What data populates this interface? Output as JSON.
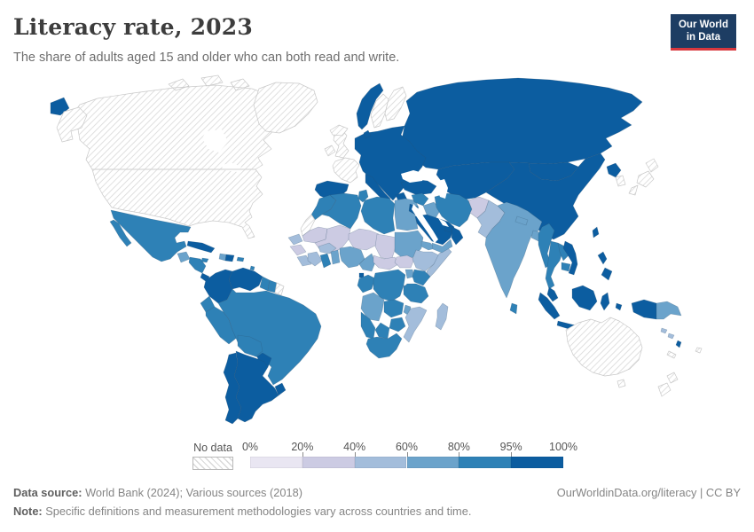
{
  "header": {
    "title": "Literacy rate, 2023",
    "subtitle": "The share of adults aged 15 and older who can both read and write.",
    "logo_line1": "Our World",
    "logo_line2": "in Data"
  },
  "legend": {
    "no_data_label": "No data",
    "tick_labels": [
      "0%",
      "20%",
      "40%",
      "60%",
      "80%",
      "95%",
      "100%"
    ],
    "bins": [
      {
        "range": "0-20%",
        "color": "#e9e6f2"
      },
      {
        "range": "20-40%",
        "color": "#cccbe3"
      },
      {
        "range": "40-60%",
        "color": "#a3bddb"
      },
      {
        "range": "60-80%",
        "color": "#6ba3cb"
      },
      {
        "range": "80-95%",
        "color": "#2e81b6"
      },
      {
        "range": "95-100%",
        "color": "#0c5da0"
      }
    ],
    "no_data_color_lines": "#d9d9d9"
  },
  "footer": {
    "data_source_label": "Data source:",
    "data_source_text": " World Bank (2024); Various sources (2018)",
    "note_label": "Note:",
    "note_text": " Specific definitions and measurement methodologies vary across countries and time.",
    "link": "OurWorldinData.org/literacy | CC BY"
  },
  "chart_data": {
    "type": "heatmap",
    "subtype": "choropleth-world-map",
    "title": "Literacy rate, 2023",
    "unit": "share of adults 15+ who can read and write (%)",
    "year": 2023,
    "bin_edges_percent": [
      0,
      20,
      40,
      60,
      80,
      95,
      100
    ],
    "legend_position": "bottom",
    "regions": [
      {
        "name": "Russia",
        "bin": "95-100%"
      },
      {
        "name": "Central Asia",
        "bin": "95-100%"
      },
      {
        "name": "Mongolia",
        "bin": "95-100%"
      },
      {
        "name": "China",
        "bin": "95-100%"
      },
      {
        "name": "Central and Eastern Europe",
        "bin": "95-100%"
      },
      {
        "name": "Norway",
        "bin": "95-100%"
      },
      {
        "name": "Sweden",
        "bin": "No data"
      },
      {
        "name": "Finland",
        "bin": "No data"
      },
      {
        "name": "Denmark",
        "bin": "95-100%"
      },
      {
        "name": "United Kingdom",
        "bin": "No data"
      },
      {
        "name": "Ireland",
        "bin": "No data"
      },
      {
        "name": "Iceland",
        "bin": "No data"
      },
      {
        "name": "France",
        "bin": "No data"
      },
      {
        "name": "Spain and Portugal",
        "bin": "95-100%"
      },
      {
        "name": "Italy",
        "bin": "95-100%"
      },
      {
        "name": "Greece",
        "bin": "95-100%"
      },
      {
        "name": "Turkey",
        "bin": "95-100%"
      },
      {
        "name": "North Korea",
        "bin": "95-100%"
      },
      {
        "name": "South Korea",
        "bin": "No data"
      },
      {
        "name": "Japan",
        "bin": "No data"
      },
      {
        "name": "Taiwan",
        "bin": "95-100%"
      },
      {
        "name": "Canada",
        "bin": "No data"
      },
      {
        "name": "United States",
        "bin": "No data"
      },
      {
        "name": "Greenland",
        "bin": "No data"
      },
      {
        "name": "Mexico",
        "bin": "80-95%"
      },
      {
        "name": "Guatemala",
        "bin": "60-80%"
      },
      {
        "name": "Honduras and Nicaragua",
        "bin": "80-95%"
      },
      {
        "name": "Costa Rica",
        "bin": "95-100%"
      },
      {
        "name": "Panama",
        "bin": "80-95%"
      },
      {
        "name": "Cuba",
        "bin": "95-100%"
      },
      {
        "name": "Jamaica",
        "bin": "80-95%"
      },
      {
        "name": "Haiti",
        "bin": "60-80%"
      },
      {
        "name": "Dominican Republic",
        "bin": "95-100%"
      },
      {
        "name": "Puerto Rico",
        "bin": "80-95%"
      },
      {
        "name": "Lesser Antilles",
        "bin": "80-95%"
      },
      {
        "name": "Colombia",
        "bin": "95-100%"
      },
      {
        "name": "Venezuela",
        "bin": "95-100%"
      },
      {
        "name": "Guyana",
        "bin": "80-95%"
      },
      {
        "name": "Suriname",
        "bin": "80-95%"
      },
      {
        "name": "French Guiana",
        "bin": "No data"
      },
      {
        "name": "Ecuador",
        "bin": "80-95%"
      },
      {
        "name": "Peru",
        "bin": "80-95%"
      },
      {
        "name": "Brazil",
        "bin": "80-95%"
      },
      {
        "name": "Bolivia",
        "bin": "80-95%"
      },
      {
        "name": "Paraguay",
        "bin": "95-100%"
      },
      {
        "name": "Uruguay",
        "bin": "95-100%"
      },
      {
        "name": "Argentina",
        "bin": "95-100%"
      },
      {
        "name": "Chile",
        "bin": "95-100%"
      },
      {
        "name": "Morocco",
        "bin": "80-95%"
      },
      {
        "name": "Western Sahara",
        "bin": "No data"
      },
      {
        "name": "Algeria",
        "bin": "80-95%"
      },
      {
        "name": "Tunisia",
        "bin": "80-95%"
      },
      {
        "name": "Libya",
        "bin": "80-95%"
      },
      {
        "name": "Egypt",
        "bin": "60-80%"
      },
      {
        "name": "Mauritania",
        "bin": "20-40%"
      },
      {
        "name": "Mali",
        "bin": "20-40%"
      },
      {
        "name": "Niger",
        "bin": "20-40%"
      },
      {
        "name": "Chad",
        "bin": "20-40%"
      },
      {
        "name": "Sudan",
        "bin": "60-80%"
      },
      {
        "name": "Eritrea",
        "bin": "60-80%"
      },
      {
        "name": "Senegal",
        "bin": "40-60%"
      },
      {
        "name": "Guinea",
        "bin": "20-40%"
      },
      {
        "name": "Sierra Leone and Liberia",
        "bin": "40-60%"
      },
      {
        "name": "Cote d'Ivoire",
        "bin": "40-60%"
      },
      {
        "name": "Burkina Faso",
        "bin": "40-60%"
      },
      {
        "name": "Ghana",
        "bin": "80-95%"
      },
      {
        "name": "Togo and Benin",
        "bin": "60-80%"
      },
      {
        "name": "Nigeria",
        "bin": "60-80%"
      },
      {
        "name": "Cameroon",
        "bin": "60-80%"
      },
      {
        "name": "Central African Republic",
        "bin": "20-40%"
      },
      {
        "name": "South Sudan",
        "bin": "20-40%"
      },
      {
        "name": "Ethiopia",
        "bin": "40-60%"
      },
      {
        "name": "Somalia",
        "bin": "40-60%"
      },
      {
        "name": "Equatorial Guinea",
        "bin": "95-100%"
      },
      {
        "name": "Gabon and Congo",
        "bin": "80-95%"
      },
      {
        "name": "Democratic Republic of Congo",
        "bin": "80-95%"
      },
      {
        "name": "Uganda",
        "bin": "60-80%"
      },
      {
        "name": "Kenya",
        "bin": "80-95%"
      },
      {
        "name": "Rwanda and Burundi",
        "bin": "60-80%"
      },
      {
        "name": "Tanzania",
        "bin": "80-95%"
      },
      {
        "name": "Angola",
        "bin": "60-80%"
      },
      {
        "name": "Zambia",
        "bin": "80-95%"
      },
      {
        "name": "Malawi",
        "bin": "60-80%"
      },
      {
        "name": "Mozambique",
        "bin": "40-60%"
      },
      {
        "name": "Zimbabwe",
        "bin": "80-95%"
      },
      {
        "name": "Botswana",
        "bin": "80-95%"
      },
      {
        "name": "Namibia",
        "bin": "80-95%"
      },
      {
        "name": "South Africa",
        "bin": "80-95%"
      },
      {
        "name": "Madagascar",
        "bin": "40-60%"
      },
      {
        "name": "Syria",
        "bin": "80-95%"
      },
      {
        "name": "Jordan",
        "bin": "95-100%"
      },
      {
        "name": "Iraq",
        "bin": "60-80%"
      },
      {
        "name": "Saudi Arabia",
        "bin": "95-100%"
      },
      {
        "name": "Yemen",
        "bin": "60-80%"
      },
      {
        "name": "Oman",
        "bin": "95-100%"
      },
      {
        "name": "United Arab Emirates",
        "bin": "95-100%"
      },
      {
        "name": "Iran",
        "bin": "80-95%"
      },
      {
        "name": "Afghanistan",
        "bin": "20-40%"
      },
      {
        "name": "Pakistan",
        "bin": "40-60%"
      },
      {
        "name": "India",
        "bin": "60-80%"
      },
      {
        "name": "Nepal",
        "bin": "60-80%"
      },
      {
        "name": "Bangladesh",
        "bin": "60-80%"
      },
      {
        "name": "Sri Lanka",
        "bin": "80-95%"
      },
      {
        "name": "Myanmar",
        "bin": "80-95%"
      },
      {
        "name": "Thailand",
        "bin": "80-95%"
      },
      {
        "name": "Laos",
        "bin": "80-95%"
      },
      {
        "name": "Cambodia",
        "bin": "80-95%"
      },
      {
        "name": "Vietnam",
        "bin": "95-100%"
      },
      {
        "name": "Malaysia",
        "bin": "95-100%"
      },
      {
        "name": "Indonesia",
        "bin": "95-100%"
      },
      {
        "name": "Philippines",
        "bin": "95-100%"
      },
      {
        "name": "Papua New Guinea",
        "bin": "60-80%"
      },
      {
        "name": "Solomon Islands",
        "bin": "40-60%"
      },
      {
        "name": "Vanuatu",
        "bin": "95-100%"
      },
      {
        "name": "Fiji",
        "bin": "No data"
      },
      {
        "name": "New Caledonia",
        "bin": "No data"
      },
      {
        "name": "Australia",
        "bin": "No data"
      },
      {
        "name": "New Zealand",
        "bin": "No data"
      }
    ]
  }
}
